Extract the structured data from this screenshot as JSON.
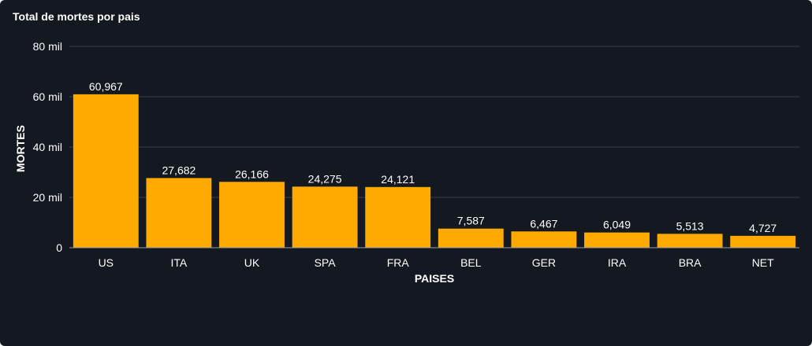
{
  "panel": {
    "title": "Total de mortes por pais"
  },
  "chart_data": {
    "type": "bar",
    "categories": [
      "US",
      "ITA",
      "UK",
      "SPA",
      "FRA",
      "BEL",
      "GER",
      "IRA",
      "BRA",
      "NET"
    ],
    "values": [
      60967,
      27682,
      26166,
      24275,
      24121,
      7587,
      6467,
      6049,
      5513,
      4727
    ],
    "data_labels": [
      "60,967",
      "27,682",
      "26,166",
      "24,275",
      "24,121",
      "7,587",
      "6,467",
      "6,049",
      "5,513",
      "4,727"
    ],
    "xlabel": "PAISES",
    "ylabel": "MORTES",
    "ylim": [
      0,
      80000
    ],
    "yticks": [
      0,
      20000,
      40000,
      60000,
      80000
    ],
    "ytick_labels": [
      "0",
      "20 mil",
      "40 mil",
      "60 mil",
      "80 mil"
    ],
    "grid": true,
    "legend": "none",
    "colors": {
      "bar": "#FFAA00",
      "background": "#131821",
      "grid": "#3a3f47",
      "text": "#ffffff"
    }
  }
}
